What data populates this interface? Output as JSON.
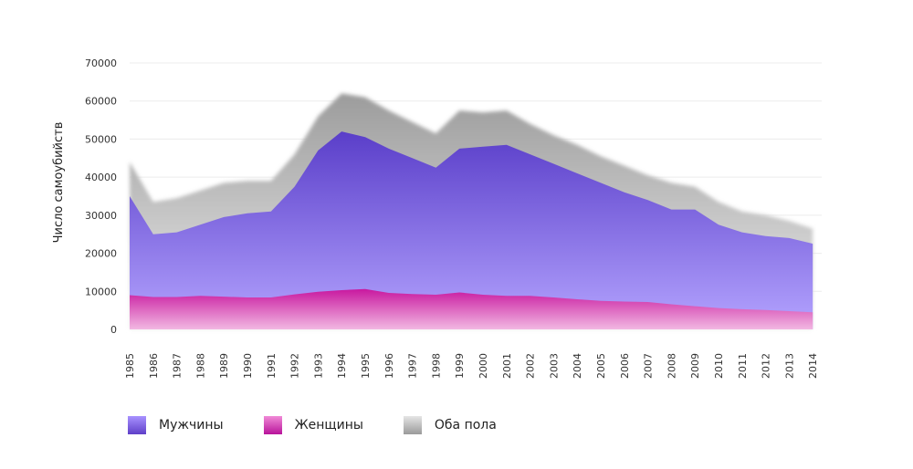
{
  "chart_data": {
    "type": "area",
    "title": "",
    "xlabel": "",
    "ylabel": "Число самоубийств",
    "ylim": [
      0,
      70000
    ],
    "yticks": [
      0,
      10000,
      20000,
      30000,
      40000,
      50000,
      60000,
      70000
    ],
    "x": [
      "1985",
      "1986",
      "1987",
      "1988",
      "1989",
      "1990",
      "1991",
      "1992",
      "1993",
      "1994",
      "1995",
      "1996",
      "1997",
      "1998",
      "1999",
      "2000",
      "2001",
      "2002",
      "2003",
      "2004",
      "2005",
      "2006",
      "2007",
      "2008",
      "2009",
      "2010",
      "2011",
      "2012",
      "2013",
      "2014"
    ],
    "series": [
      {
        "name": "Оба пола",
        "color": "#bdbdbd",
        "values": [
          44000,
          33500,
          34500,
          36500,
          38500,
          39000,
          39000,
          46000,
          56000,
          62000,
          61000,
          57500,
          54500,
          51500,
          57500,
          57000,
          57500,
          54000,
          51000,
          48500,
          45500,
          43000,
          40500,
          38500,
          37500,
          33500,
          31000,
          30000,
          28500,
          26500
        ]
      },
      {
        "name": "Мужчины",
        "color": "#7f63e0",
        "values": [
          35000,
          25000,
          25500,
          27500,
          29500,
          30500,
          31000,
          37500,
          47000,
          52000,
          50500,
          47500,
          45000,
          42500,
          47500,
          48000,
          48500,
          46000,
          43500,
          41000,
          38500,
          36000,
          34000,
          31500,
          31500,
          27500,
          25500,
          24500,
          24000,
          22500
        ]
      },
      {
        "name": "Женщины",
        "color": "#d12cad",
        "values": [
          9000,
          8500,
          8500,
          8800,
          8600,
          8400,
          8400,
          9200,
          9900,
          10300,
          10600,
          9600,
          9300,
          9100,
          9700,
          9100,
          8800,
          8800,
          8400,
          7900,
          7500,
          7300,
          7200,
          6600,
          6100,
          5600,
          5300,
          5100,
          4800,
          4500
        ]
      }
    ],
    "legend_position": "bottom-left",
    "grid": true
  },
  "legend": [
    {
      "label": "Мужчины",
      "color_top": "#a892ff",
      "color_bottom": "#5f3fc8"
    },
    {
      "label": "Женщины",
      "color_top": "#f08ad6",
      "color_bottom": "#b8139a"
    },
    {
      "label": "Оба пола",
      "color_top": "#e5e5e5",
      "color_bottom": "#9a9a9a"
    }
  ]
}
